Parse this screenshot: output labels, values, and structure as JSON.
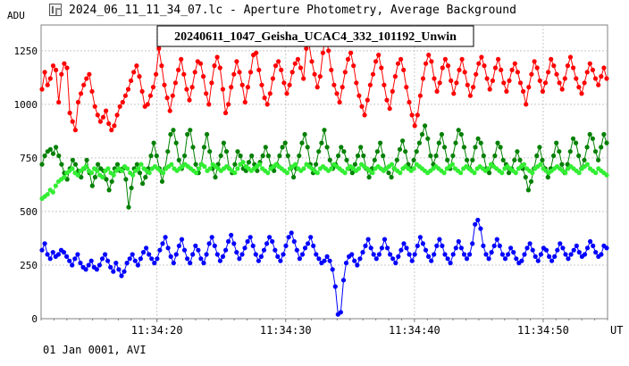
{
  "window": {
    "title": "2024_06_11_11_34_07.lc - Aperture Photometry, Average Background",
    "icon": "lightcurve-app-icon"
  },
  "footer": {
    "text": "01 Jan 0001, AVI"
  },
  "chart_data": {
    "type": "scatter",
    "title": "20240611_1047_Geisha_UCAC4_332_101192_Unwin",
    "ylabel": "ADU",
    "xlabel": "UT",
    "x_tick_labels": [
      "11:34:20",
      "11:34:30",
      "11:34:40",
      "11:34:50"
    ],
    "y_ticks": [
      0,
      250,
      500,
      750,
      1000,
      1250
    ],
    "ylim": [
      0,
      1370
    ],
    "xlim": [
      "11:34:11",
      "11:34:55"
    ],
    "grid": true,
    "colors": {
      "red": "#ff0000",
      "darkgreen": "#008000",
      "lightgreen": "#33ee33",
      "blue": "#0000ff"
    },
    "series": [
      {
        "color": "#ff0000",
        "values": [
          1070,
          1150,
          1090,
          1120,
          1180,
          1160,
          1010,
          1140,
          1190,
          1170,
          960,
          920,
          880,
          1010,
          1050,
          1090,
          1120,
          1140,
          1060,
          990,
          950,
          920,
          940,
          970,
          910,
          880,
          900,
          950,
          990,
          1010,
          1040,
          1070,
          1110,
          1150,
          1180,
          1130,
          1060,
          990,
          1000,
          1040,
          1080,
          1140,
          1260,
          1180,
          1090,
          1030,
          970,
          1040,
          1100,
          1160,
          1210,
          1140,
          1070,
          1020,
          1080,
          1150,
          1200,
          1190,
          1130,
          1050,
          1000,
          1100,
          1180,
          1220,
          1170,
          1070,
          960,
          1000,
          1080,
          1140,
          1200,
          1150,
          1090,
          1010,
          1080,
          1150,
          1230,
          1240,
          1160,
          1090,
          1030,
          1000,
          1050,
          1120,
          1180,
          1200,
          1160,
          1100,
          1050,
          1090,
          1150,
          1190,
          1210,
          1170,
          1120,
          1260,
          1280,
          1200,
          1140,
          1080,
          1130,
          1240,
          1330,
          1250,
          1160,
          1090,
          1050,
          1010,
          1080,
          1150,
          1210,
          1240,
          1180,
          1100,
          1040,
          990,
          950,
          1020,
          1090,
          1140,
          1200,
          1230,
          1170,
          1090,
          1020,
          980,
          1060,
          1130,
          1190,
          1210,
          1160,
          1080,
          1010,
          950,
          900,
          950,
          1040,
          1120,
          1190,
          1230,
          1200,
          1120,
          1060,
          1100,
          1170,
          1210,
          1180,
          1110,
          1050,
          1100,
          1160,
          1210,
          1150,
          1090,
          1040,
          1080,
          1140,
          1190,
          1220,
          1180,
          1120,
          1070,
          1110,
          1170,
          1210,
          1160,
          1100,
          1060,
          1110,
          1160,
          1190,
          1150,
          1100,
          1060,
          1000,
          1080,
          1140,
          1200,
          1170,
          1110,
          1060,
          1100,
          1150,
          1210,
          1180,
          1140,
          1100,
          1070,
          1120,
          1180,
          1220,
          1170,
          1120,
          1080,
          1050,
          1100,
          1150,
          1190,
          1160,
          1120,
          1090,
          1130,
          1170,
          1120
        ]
      },
      {
        "color": "#008000",
        "values": [
          720,
          760,
          780,
          790,
          770,
          800,
          760,
          720,
          680,
          650,
          700,
          740,
          720,
          690,
          660,
          700,
          740,
          680,
          620,
          660,
          720,
          700,
          690,
          650,
          600,
          640,
          700,
          720,
          690,
          700,
          650,
          520,
          610,
          700,
          720,
          680,
          630,
          660,
          700,
          760,
          820,
          760,
          700,
          640,
          700,
          780,
          860,
          880,
          820,
          740,
          700,
          760,
          860,
          880,
          800,
          720,
          680,
          720,
          800,
          860,
          780,
          700,
          660,
          720,
          760,
          820,
          780,
          700,
          680,
          720,
          780,
          760,
          700,
          690,
          730,
          760,
          720,
          690,
          730,
          760,
          800,
          760,
          710,
          690,
          720,
          760,
          800,
          820,
          760,
          700,
          660,
          700,
          760,
          820,
          860,
          800,
          720,
          680,
          720,
          780,
          820,
          880,
          800,
          740,
          700,
          720,
          760,
          800,
          780,
          740,
          700,
          680,
          720,
          760,
          800,
          760,
          700,
          660,
          700,
          740,
          780,
          820,
          760,
          700,
          680,
          660,
          700,
          740,
          790,
          830,
          780,
          720,
          700,
          740,
          780,
          820,
          860,
          900,
          840,
          760,
          720,
          760,
          820,
          860,
          800,
          740,
          700,
          760,
          820,
          880,
          860,
          800,
          740,
          700,
          740,
          800,
          840,
          820,
          760,
          700,
          680,
          720,
          760,
          820,
          800,
          740,
          720,
          680,
          700,
          740,
          780,
          740,
          700,
          660,
          600,
          640,
          700,
          760,
          800,
          740,
          700,
          660,
          700,
          760,
          820,
          780,
          720,
          680,
          720,
          780,
          840,
          820,
          760,
          700,
          740,
          800,
          860,
          840,
          780,
          740,
          800,
          860,
          820
        ]
      },
      {
        "color": "#33ee33",
        "values": [
          560,
          570,
          580,
          600,
          590,
          620,
          640,
          650,
          660,
          680,
          690,
          700,
          680,
          670,
          690,
          700,
          710,
          690,
          680,
          700,
          690,
          670,
          660,
          690,
          700,
          680,
          670,
          690,
          700,
          690,
          710,
          700,
          680,
          670,
          690,
          700,
          720,
          700,
          690,
          680,
          700,
          710,
          700,
          690,
          680,
          700,
          710,
          720,
          700,
          690,
          700,
          710,
          720,
          710,
          700,
          690,
          680,
          700,
          720,
          710,
          690,
          700,
          720,
          710,
          700,
          690,
          700,
          710,
          700,
          690,
          680,
          700,
          720,
          730,
          710,
          700,
          690,
          700,
          710,
          720,
          700,
          690,
          680,
          700,
          710,
          720,
          710,
          700,
          690,
          680,
          700,
          710,
          720,
          700,
          690,
          700,
          720,
          710,
          700,
          690,
          680,
          700,
          710,
          700,
          690,
          700,
          720,
          710,
          700,
          690,
          680,
          700,
          710,
          700,
          690,
          700,
          720,
          710,
          700,
          690,
          680,
          700,
          710,
          700,
          690,
          700,
          710,
          720,
          700,
          690,
          680,
          700,
          710,
          700,
          690,
          700,
          720,
          710,
          700,
          690,
          680,
          690,
          700,
          710,
          700,
          690,
          680,
          700,
          710,
          720,
          700,
          690,
          680,
          700,
          710,
          700,
          690,
          680,
          700,
          710,
          700,
          690,
          700,
          720,
          710,
          700,
          690,
          680,
          700,
          710,
          700,
          690,
          680,
          700,
          710,
          720,
          700,
          690,
          680,
          700,
          710,
          720,
          700,
          690,
          680,
          690,
          700,
          710,
          700,
          690,
          680,
          700,
          710,
          700,
          690,
          680,
          700,
          710,
          720,
          700,
          690,
          680,
          700,
          690,
          680,
          670
        ]
      },
      {
        "color": "#0000ff",
        "values": [
          320,
          350,
          300,
          280,
          310,
          290,
          300,
          320,
          310,
          290,
          270,
          250,
          280,
          300,
          260,
          240,
          230,
          250,
          270,
          240,
          230,
          250,
          280,
          300,
          270,
          240,
          220,
          260,
          230,
          200,
          220,
          260,
          280,
          300,
          270,
          250,
          280,
          310,
          330,
          300,
          280,
          260,
          280,
          320,
          350,
          380,
          330,
          290,
          260,
          300,
          340,
          370,
          320,
          280,
          260,
          300,
          340,
          320,
          280,
          260,
          300,
          350,
          380,
          340,
          300,
          270,
          290,
          320,
          360,
          390,
          350,
          310,
          280,
          300,
          330,
          360,
          380,
          340,
          300,
          270,
          290,
          320,
          350,
          380,
          360,
          320,
          290,
          270,
          300,
          340,
          380,
          400,
          360,
          320,
          280,
          300,
          330,
          350,
          380,
          340,
          300,
          280,
          260,
          270,
          290,
          270,
          230,
          150,
          20,
          30,
          180,
          260,
          290,
          300,
          270,
          250,
          280,
          310,
          340,
          370,
          330,
          300,
          280,
          300,
          330,
          370,
          330,
          300,
          280,
          260,
          290,
          320,
          350,
          330,
          300,
          270,
          300,
          340,
          380,
          350,
          320,
          290,
          270,
          300,
          340,
          370,
          340,
          300,
          280,
          260,
          300,
          330,
          360,
          330,
          300,
          280,
          300,
          350,
          440,
          460,
          420,
          340,
          300,
          280,
          310,
          340,
          370,
          340,
          300,
          280,
          300,
          330,
          310,
          280,
          260,
          270,
          300,
          330,
          350,
          320,
          290,
          270,
          300,
          330,
          320,
          290,
          270,
          290,
          320,
          350,
          330,
          300,
          280,
          300,
          320,
          340,
          310,
          290,
          300,
          330,
          360,
          340,
          310,
          290,
          300,
          340,
          330
        ]
      }
    ]
  }
}
